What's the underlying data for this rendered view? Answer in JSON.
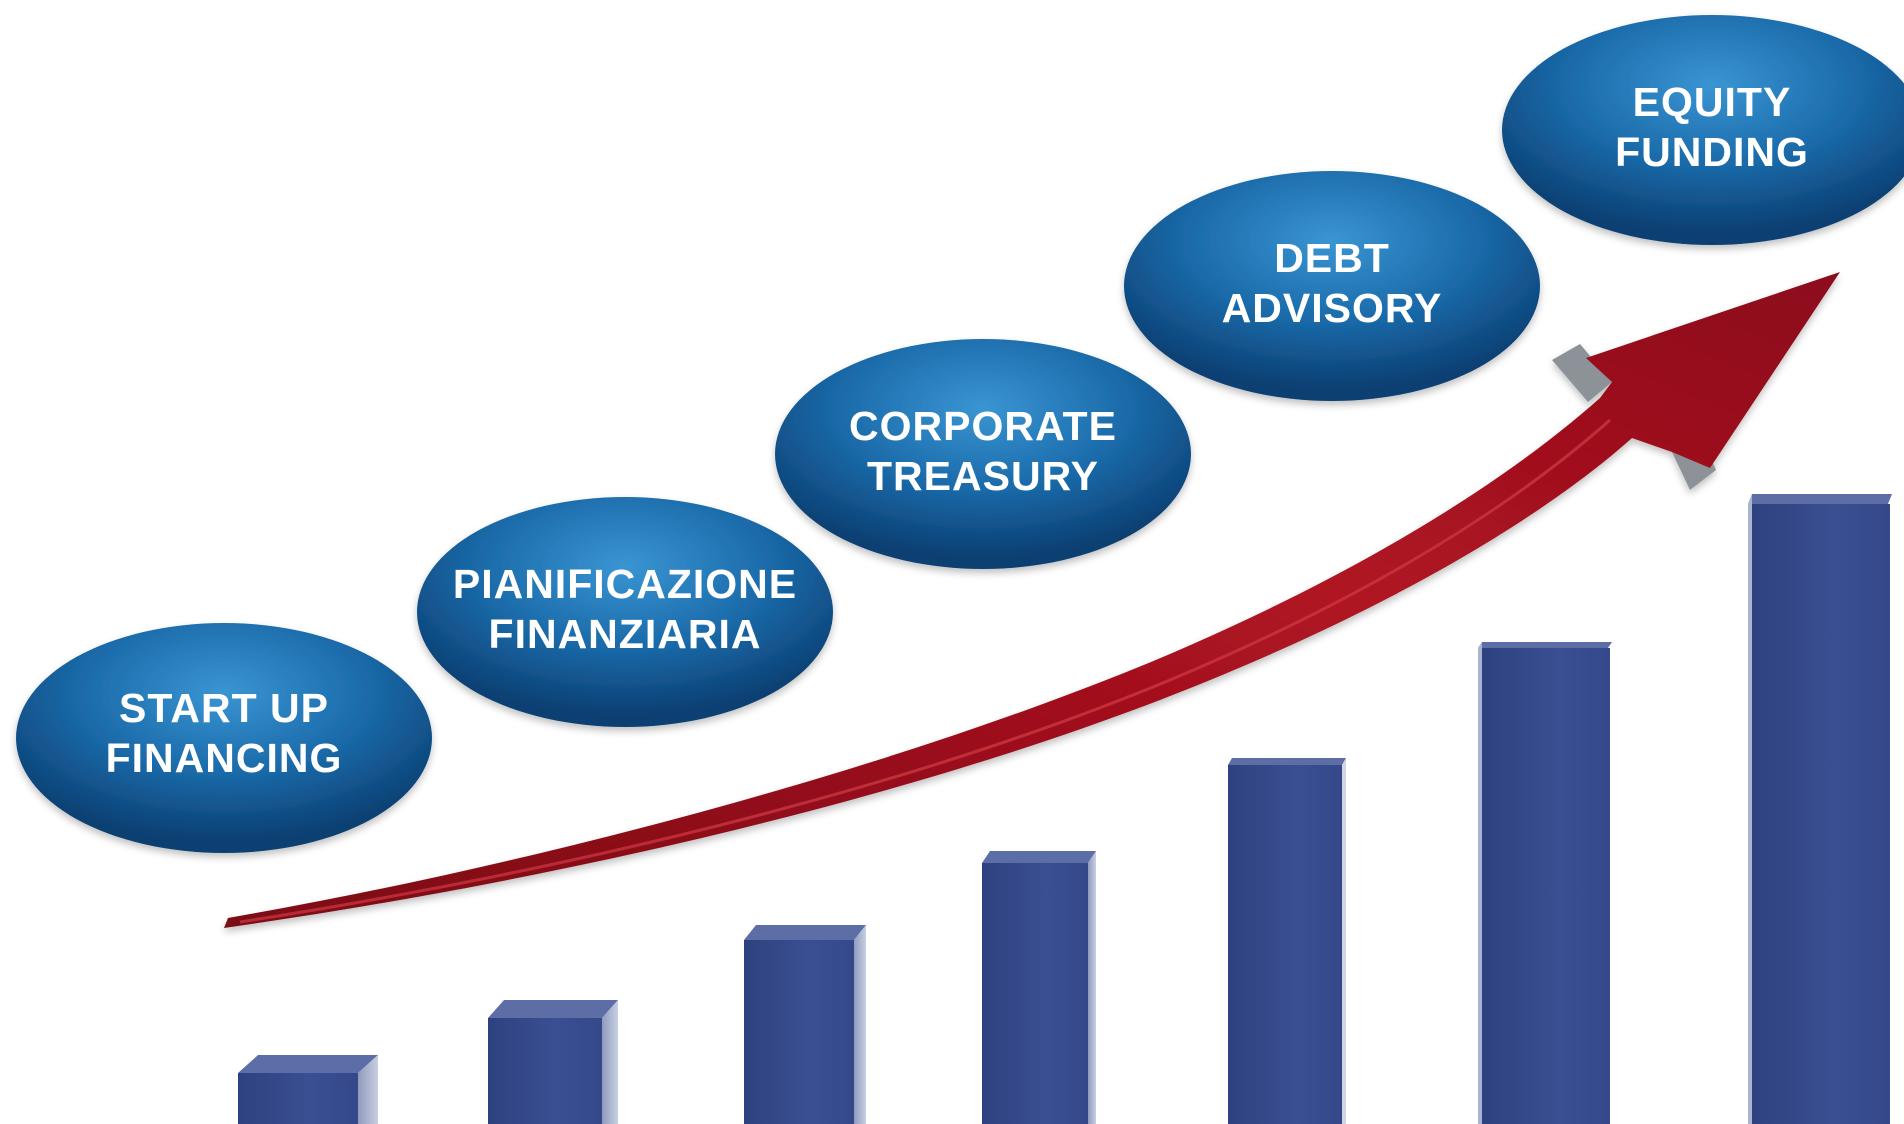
{
  "steps": [
    {
      "line1": "START UP",
      "line2": "FINANCING"
    },
    {
      "line1": "PIANIFICAZIONE",
      "line2": "FINANZIARIA"
    },
    {
      "line1": "CORPORATE",
      "line2": "TREASURY"
    },
    {
      "line1": "DEBT",
      "line2": "ADVISORY"
    },
    {
      "line1": "EQUITY",
      "line2": "FUNDING"
    }
  ],
  "colors": {
    "bubble_light": "#2f86c4",
    "bubble_dark": "#0c4a80",
    "bar_front": "#34498a",
    "bar_side": "#25356a",
    "bar_top": "#5c6fa8",
    "arrow": "#a01020",
    "arrow_bevel": "#8a8f96"
  }
}
